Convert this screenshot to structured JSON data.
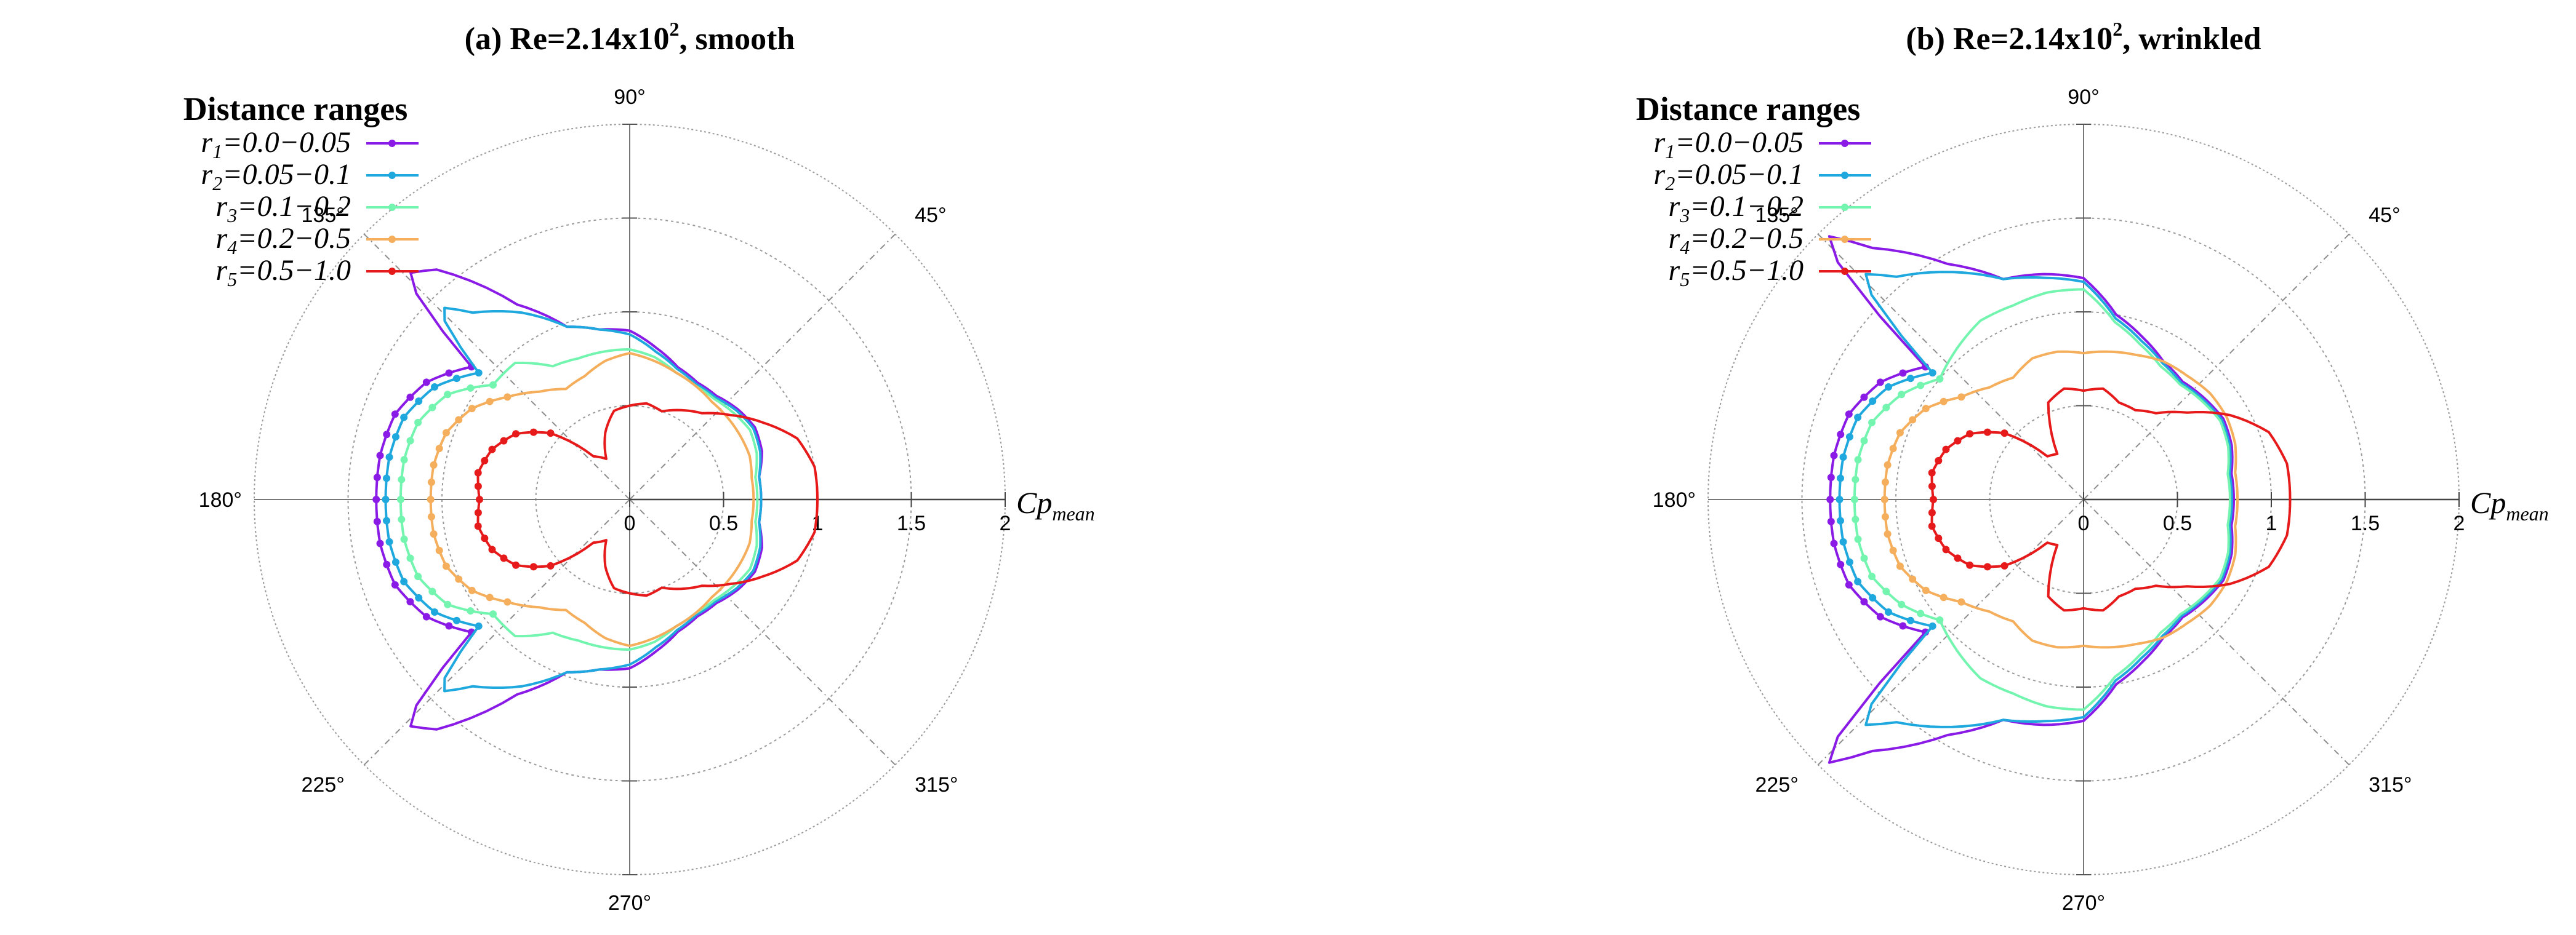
{
  "chart_data": [
    {
      "type": "polar-line",
      "panel_label": "(a)",
      "title": {
        "prefix": "(a) Re=2.14x10",
        "sup": "2",
        "suffix": ", smooth"
      },
      "radial_axis": {
        "label_main": "Cp",
        "label_sub": "mean",
        "range": [
          0,
          2
        ],
        "ticks": [
          "0",
          "0.5",
          "1",
          "1.5",
          "2"
        ]
      },
      "angle_labels": [
        "90°",
        "45°",
        "135°",
        "180°",
        "225°",
        "270°",
        "315°"
      ],
      "legend": {
        "title": "Distance ranges",
        "placement": "top-left"
      },
      "series": [
        {
          "label_r": "r",
          "label_sub": "1",
          "label_text": "=0.0−0.05",
          "color": "#8a1be6",
          "cp": [
            [
              180,
              1.35
            ],
            [
              170,
              1.35
            ],
            [
              160,
              1.33
            ],
            [
              150,
              1.25
            ],
            [
              140,
              1.1
            ],
            [
              135,
              1.7
            ],
            [
              130,
              1.6
            ],
            [
              120,
              1.2
            ],
            [
              110,
              0.98
            ],
            [
              100,
              0.92
            ],
            [
              90,
              0.9
            ],
            [
              80,
              0.82
            ],
            [
              70,
              0.75
            ],
            [
              60,
              0.72
            ],
            [
              50,
              0.72
            ],
            [
              40,
              0.75
            ],
            [
              30,
              0.77
            ],
            [
              20,
              0.75
            ],
            [
              10,
              0.7
            ],
            [
              0,
              0.7
            ]
          ]
        },
        {
          "label_r": "r",
          "label_sub": "2",
          "label_text": "=0.05−0.1",
          "color": "#1fa8de",
          "cp": [
            [
              180,
              1.3
            ],
            [
              170,
              1.3
            ],
            [
              160,
              1.28
            ],
            [
              150,
              1.2
            ],
            [
              140,
              1.05
            ],
            [
              135,
              1.45
            ],
            [
              130,
              1.3
            ],
            [
              120,
              1.15
            ],
            [
              110,
              0.98
            ],
            [
              100,
              0.92
            ],
            [
              90,
              0.88
            ],
            [
              80,
              0.8
            ],
            [
              70,
              0.74
            ],
            [
              60,
              0.71
            ],
            [
              50,
              0.71
            ],
            [
              40,
              0.74
            ],
            [
              30,
              0.76
            ],
            [
              20,
              0.74
            ],
            [
              10,
              0.7
            ],
            [
              0,
              0.7
            ]
          ]
        },
        {
          "label_r": "r",
          "label_sub": "3",
          "label_text": "=0.1−0.2",
          "color": "#73f5b0",
          "cp": [
            [
              180,
              1.22
            ],
            [
              170,
              1.22
            ],
            [
              160,
              1.2
            ],
            [
              150,
              1.12
            ],
            [
              140,
              0.95
            ],
            [
              130,
              0.95
            ],
            [
              120,
              0.82
            ],
            [
              110,
              0.8
            ],
            [
              100,
              0.8
            ],
            [
              90,
              0.8
            ],
            [
              80,
              0.77
            ],
            [
              70,
              0.72
            ],
            [
              60,
              0.7
            ],
            [
              50,
              0.7
            ],
            [
              40,
              0.72
            ],
            [
              30,
              0.74
            ],
            [
              20,
              0.72
            ],
            [
              10,
              0.68
            ],
            [
              0,
              0.68
            ]
          ]
        },
        {
          "label_r": "r",
          "label_sub": "4",
          "label_text": "=0.2−0.5",
          "color": "#f5ae5c",
          "cp": [
            [
              180,
              1.06
            ],
            [
              170,
              1.06
            ],
            [
              160,
              1.04
            ],
            [
              150,
              0.97
            ],
            [
              140,
              0.85
            ],
            [
              130,
              0.75
            ],
            [
              120,
              0.68
            ],
            [
              110,
              0.7
            ],
            [
              100,
              0.75
            ],
            [
              90,
              0.78
            ],
            [
              80,
              0.75
            ],
            [
              70,
              0.72
            ],
            [
              60,
              0.7
            ],
            [
              50,
              0.68
            ],
            [
              40,
              0.68
            ],
            [
              30,
              0.68
            ],
            [
              20,
              0.68
            ],
            [
              10,
              0.66
            ],
            [
              0,
              0.66
            ]
          ]
        },
        {
          "label_r": "r",
          "label_sub": "5",
          "label_text": "=0.5−1.0",
          "color": "#e61a1a",
          "cp": [
            [
              180,
              0.8
            ],
            [
              170,
              0.82
            ],
            [
              160,
              0.78
            ],
            [
              150,
              0.7
            ],
            [
              140,
              0.55
            ],
            [
              130,
              0.3
            ],
            [
              120,
              0.25
            ],
            [
              110,
              0.38
            ],
            [
              100,
              0.48
            ],
            [
              90,
              0.5
            ],
            [
              80,
              0.52
            ],
            [
              70,
              0.5
            ],
            [
              60,
              0.55
            ],
            [
              50,
              0.6
            ],
            [
              40,
              0.7
            ],
            [
              30,
              0.82
            ],
            [
              20,
              0.95
            ],
            [
              10,
              1.0
            ],
            [
              0,
              1.0
            ]
          ]
        }
      ]
    },
    {
      "type": "polar-line",
      "panel_label": "(b)",
      "title": {
        "prefix": "(b) Re=2.14x10",
        "sup": "2",
        "suffix": ", wrinkled"
      },
      "radial_axis": {
        "label_main": "Cp",
        "label_sub": "mean",
        "range": [
          0,
          2
        ],
        "ticks": [
          "0",
          "0.5",
          "1",
          "1.5",
          "2"
        ]
      },
      "angle_labels": [
        "90°",
        "45°",
        "135°",
        "180°",
        "225°",
        "270°",
        "315°"
      ],
      "legend": {
        "title": "Distance ranges",
        "placement": "top-left"
      },
      "series": [
        {
          "label_r": "r",
          "label_sub": "1",
          "label_text": "=0.0−0.05",
          "color": "#8a1be6",
          "cp": [
            [
              180,
              1.35
            ],
            [
              170,
              1.35
            ],
            [
              160,
              1.33
            ],
            [
              150,
              1.25
            ],
            [
              140,
              1.1
            ],
            [
              135,
              2.0
            ],
            [
              130,
              1.75
            ],
            [
              120,
              1.45
            ],
            [
              110,
              1.25
            ],
            [
              100,
              1.22
            ],
            [
              90,
              1.18
            ],
            [
              80,
              1.0
            ],
            [
              70,
              0.92
            ],
            [
              60,
              0.85
            ],
            [
              50,
              0.82
            ],
            [
              40,
              0.84
            ],
            [
              30,
              0.86
            ],
            [
              20,
              0.84
            ],
            [
              10,
              0.8
            ],
            [
              0,
              0.8
            ]
          ]
        },
        {
          "label_r": "r",
          "label_sub": "2",
          "label_text": "=0.05−0.1",
          "color": "#1fa8de",
          "cp": [
            [
              180,
              1.3
            ],
            [
              170,
              1.3
            ],
            [
              160,
              1.28
            ],
            [
              150,
              1.2
            ],
            [
              140,
              1.05
            ],
            [
              135,
              1.7
            ],
            [
              130,
              1.55
            ],
            [
              120,
              1.4
            ],
            [
              110,
              1.25
            ],
            [
              100,
              1.2
            ],
            [
              90,
              1.16
            ],
            [
              80,
              0.98
            ],
            [
              70,
              0.9
            ],
            [
              60,
              0.84
            ],
            [
              50,
              0.81
            ],
            [
              40,
              0.83
            ],
            [
              30,
              0.85
            ],
            [
              20,
              0.83
            ],
            [
              10,
              0.79
            ],
            [
              0,
              0.79
            ]
          ]
        },
        {
          "label_r": "r",
          "label_sub": "3",
          "label_text": "=0.1−0.2",
          "color": "#73f5b0",
          "cp": [
            [
              180,
              1.22
            ],
            [
              170,
              1.22
            ],
            [
              160,
              1.2
            ],
            [
              150,
              1.12
            ],
            [
              140,
              1.0
            ],
            [
              130,
              1.05
            ],
            [
              120,
              1.1
            ],
            [
              110,
              1.1
            ],
            [
              100,
              1.12
            ],
            [
              90,
              1.12
            ],
            [
              80,
              0.96
            ],
            [
              70,
              0.88
            ],
            [
              60,
              0.82
            ],
            [
              50,
              0.8
            ],
            [
              40,
              0.82
            ],
            [
              30,
              0.84
            ],
            [
              20,
              0.82
            ],
            [
              10,
              0.78
            ],
            [
              0,
              0.78
            ]
          ]
        },
        {
          "label_r": "r",
          "label_sub": "4",
          "label_text": "=0.2−0.5",
          "color": "#f5ae5c",
          "cp": [
            [
              180,
              1.06
            ],
            [
              170,
              1.06
            ],
            [
              160,
              1.04
            ],
            [
              150,
              0.97
            ],
            [
              140,
              0.85
            ],
            [
              130,
              0.78
            ],
            [
              120,
              0.75
            ],
            [
              110,
              0.8
            ],
            [
              100,
              0.8
            ],
            [
              90,
              0.78
            ],
            [
              80,
              0.8
            ],
            [
              70,
              0.82
            ],
            [
              60,
              0.85
            ],
            [
              50,
              0.86
            ],
            [
              40,
              0.88
            ],
            [
              30,
              0.88
            ],
            [
              20,
              0.86
            ],
            [
              10,
              0.82
            ],
            [
              0,
              0.82
            ]
          ]
        },
        {
          "label_r": "r",
          "label_sub": "5",
          "label_text": "=0.5−1.0",
          "color": "#e61a1a",
          "cp": [
            [
              180,
              0.8
            ],
            [
              170,
              0.82
            ],
            [
              160,
              0.78
            ],
            [
              150,
              0.7
            ],
            [
              140,
              0.55
            ],
            [
              130,
              0.3
            ],
            [
              120,
              0.28
            ],
            [
              110,
              0.55
            ],
            [
              100,
              0.6
            ],
            [
              90,
              0.58
            ],
            [
              80,
              0.6
            ],
            [
              70,
              0.55
            ],
            [
              60,
              0.55
            ],
            [
              50,
              0.6
            ],
            [
              40,
              0.72
            ],
            [
              30,
              0.9
            ],
            [
              20,
              1.05
            ],
            [
              10,
              1.1
            ],
            [
              0,
              1.1
            ]
          ]
        }
      ]
    }
  ]
}
